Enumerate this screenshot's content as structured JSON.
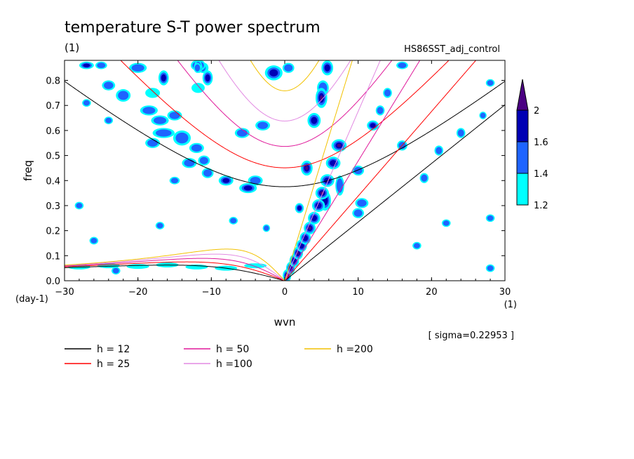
{
  "title": "temperature S-T power spectrum",
  "title_unit": "(1)",
  "run_label": "HS86SST_adj_control",
  "sigma_label": "[ sigma=0.22953 ]",
  "chart_data": {
    "type": "heatmap",
    "title": "temperature S-T power spectrum",
    "xlabel": "wvn",
    "x_unit": "(1)",
    "ylabel": "freq",
    "y_unit": "(day-1)",
    "xlim": [
      -30,
      30
    ],
    "ylim": [
      0,
      0.88
    ],
    "xticks": [
      -30,
      -20,
      -10,
      0,
      10,
      20,
      30
    ],
    "yticks": [
      0.0,
      0.1,
      0.2,
      0.3,
      0.4,
      0.5,
      0.6,
      0.7,
      0.8
    ],
    "contour_levels": [
      1.2,
      1.4,
      1.6,
      2
    ],
    "colorbar_colors": [
      "#00ffff",
      "#1e64ff",
      "#0000b4",
      "#4b0082"
    ],
    "colorbar_tick_labels": [
      "1.2",
      "1.4",
      "1.6",
      "2"
    ],
    "dispersion_curves": [
      {
        "name": "h = 12",
        "h": 12,
        "color": "#000000"
      },
      {
        "name": "h = 25",
        "h": 25,
        "color": "#ff0000"
      },
      {
        "name": "h = 50",
        "h": 50,
        "color": "#e0199a"
      },
      {
        "name": "h =100",
        "h": 100,
        "color": "#e28ae2"
      },
      {
        "name": "h =200",
        "h": 200,
        "color": "#f2c100"
      }
    ],
    "blobs": [
      {
        "x": -27,
        "y": 0.86,
        "w": 1.0,
        "h": 0.015,
        "level": 2
      },
      {
        "x": -25,
        "y": 0.86,
        "w": 0.8,
        "h": 0.015,
        "level": 1
      },
      {
        "x": -20,
        "y": 0.85,
        "w": 1.2,
        "h": 0.02,
        "level": 1
      },
      {
        "x": -24,
        "y": 0.78,
        "w": 0.9,
        "h": 0.02,
        "level": 1
      },
      {
        "x": -22,
        "y": 0.74,
        "w": 1.0,
        "h": 0.025,
        "level": 1
      },
      {
        "x": -18,
        "y": 0.75,
        "w": 1.0,
        "h": 0.02,
        "level": 0
      },
      {
        "x": -16.5,
        "y": 0.81,
        "w": 0.7,
        "h": 0.03,
        "level": 2
      },
      {
        "x": -12,
        "y": 0.86,
        "w": 0.8,
        "h": 0.02,
        "level": 1
      },
      {
        "x": -11,
        "y": 0.85,
        "w": 0.6,
        "h": 0.02,
        "level": 1
      },
      {
        "x": -11,
        "y": 0.85,
        "w": 0.6,
        "h": 0.02,
        "level": 1
      },
      {
        "x": -11.1,
        "y": 0.85,
        "w": 0.7,
        "h": 0.02,
        "level": 1
      },
      {
        "x": -11.2,
        "y": 0.85,
        "w": 0.6,
        "h": 0.02,
        "level": 1
      },
      {
        "x": -11.5,
        "y": 0.86,
        "w": 0.7,
        "h": 0.02,
        "level": 1
      },
      {
        "x": -11.7,
        "y": 0.85,
        "w": 0.5,
        "h": 0.02,
        "level": 1
      },
      {
        "x": -11.8,
        "y": 0.86,
        "w": 0.5,
        "h": 0.02,
        "level": 1
      },
      {
        "x": -11.9,
        "y": 0.85,
        "w": 0.5,
        "h": 0.02,
        "level": 1
      },
      {
        "x": -10.5,
        "y": 0.81,
        "w": 0.7,
        "h": 0.03,
        "level": 2
      },
      {
        "x": -11.8,
        "y": 0.77,
        "w": 0.9,
        "h": 0.02,
        "level": 0
      },
      {
        "x": -18.5,
        "y": 0.68,
        "w": 1.2,
        "h": 0.02,
        "level": 1
      },
      {
        "x": -17,
        "y": 0.64,
        "w": 1.2,
        "h": 0.02,
        "level": 1
      },
      {
        "x": -15,
        "y": 0.66,
        "w": 1.0,
        "h": 0.02,
        "level": 1
      },
      {
        "x": -16.5,
        "y": 0.59,
        "w": 1.5,
        "h": 0.02,
        "level": 1
      },
      {
        "x": -18,
        "y": 0.55,
        "w": 1.0,
        "h": 0.02,
        "level": 1
      },
      {
        "x": -14,
        "y": 0.57,
        "w": 1.2,
        "h": 0.03,
        "level": 1
      },
      {
        "x": -12,
        "y": 0.53,
        "w": 1.0,
        "h": 0.02,
        "level": 1
      },
      {
        "x": -13,
        "y": 0.47,
        "w": 1.0,
        "h": 0.02,
        "level": 1
      },
      {
        "x": -11,
        "y": 0.48,
        "w": 0.8,
        "h": 0.02,
        "level": 1
      },
      {
        "x": -10.5,
        "y": 0.43,
        "w": 0.8,
        "h": 0.02,
        "level": 1
      },
      {
        "x": -8,
        "y": 0.4,
        "w": 1.0,
        "h": 0.02,
        "level": 2
      },
      {
        "x": -5,
        "y": 0.37,
        "w": 1.2,
        "h": 0.02,
        "level": 2
      },
      {
        "x": -4,
        "y": 0.4,
        "w": 1.0,
        "h": 0.02,
        "level": 1
      },
      {
        "x": -5.8,
        "y": 0.59,
        "w": 1.0,
        "h": 0.02,
        "level": 1
      },
      {
        "x": -3,
        "y": 0.62,
        "w": 1.0,
        "h": 0.02,
        "level": 1
      },
      {
        "x": -1.5,
        "y": 0.83,
        "w": 1.2,
        "h": 0.03,
        "level": 2
      },
      {
        "x": 0.5,
        "y": 0.85,
        "w": 0.8,
        "h": 0.02,
        "level": 1
      },
      {
        "x": 5.8,
        "y": 0.85,
        "w": 0.8,
        "h": 0.03,
        "level": 2
      },
      {
        "x": 5.2,
        "y": 0.77,
        "w": 0.8,
        "h": 0.03,
        "level": 1
      },
      {
        "x": 5.0,
        "y": 0.73,
        "w": 0.8,
        "h": 0.04,
        "level": 3
      },
      {
        "x": 4.0,
        "y": 0.64,
        "w": 0.9,
        "h": 0.03,
        "level": 2
      },
      {
        "x": 3.0,
        "y": 0.45,
        "w": 0.8,
        "h": 0.03,
        "level": 3
      },
      {
        "x": 2.0,
        "y": 0.29,
        "w": 0.6,
        "h": 0.02,
        "level": 2
      },
      {
        "x": 5.5,
        "y": 0.32,
        "w": 0.8,
        "h": 0.04,
        "level": 2
      },
      {
        "x": 7.5,
        "y": 0.38,
        "w": 0.6,
        "h": 0.04,
        "level": 1
      },
      {
        "x": 10,
        "y": 0.44,
        "w": 0.8,
        "h": 0.02,
        "level": 1
      },
      {
        "x": 12,
        "y": 0.62,
        "w": 0.8,
        "h": 0.02,
        "level": 2
      },
      {
        "x": 13,
        "y": 0.68,
        "w": 0.6,
        "h": 0.02,
        "level": 1
      },
      {
        "x": 14,
        "y": 0.75,
        "w": 0.6,
        "h": 0.02,
        "level": 1
      },
      {
        "x": 16,
        "y": 0.86,
        "w": 0.8,
        "h": 0.015,
        "level": 1
      },
      {
        "x": 16,
        "y": 0.54,
        "w": 0.7,
        "h": 0.02,
        "level": 1
      },
      {
        "x": 10.5,
        "y": 0.31,
        "w": 0.9,
        "h": 0.02,
        "level": 1
      },
      {
        "x": 10,
        "y": 0.27,
        "w": 0.8,
        "h": 0.02,
        "level": 1
      },
      {
        "x": 19,
        "y": 0.41,
        "w": 0.6,
        "h": 0.02,
        "level": 1
      },
      {
        "x": 21,
        "y": 0.52,
        "w": 0.6,
        "h": 0.02,
        "level": 1
      },
      {
        "x": 24,
        "y": 0.59,
        "w": 0.6,
        "h": 0.02,
        "level": 1
      },
      {
        "x": 28,
        "y": 0.79,
        "w": 0.6,
        "h": 0.015,
        "level": 1
      },
      {
        "x": 27,
        "y": 0.66,
        "w": 0.5,
        "h": 0.015,
        "level": 1
      },
      {
        "x": -24,
        "y": 0.64,
        "w": 0.6,
        "h": 0.015,
        "level": 1
      },
      {
        "x": -27,
        "y": 0.71,
        "w": 0.6,
        "h": 0.015,
        "level": 1
      },
      {
        "x": -28,
        "y": 0.3,
        "w": 0.6,
        "h": 0.015,
        "level": 1
      },
      {
        "x": -26,
        "y": 0.16,
        "w": 0.6,
        "h": 0.015,
        "level": 1
      },
      {
        "x": -23,
        "y": 0.04,
        "w": 0.6,
        "h": 0.015,
        "level": 1
      },
      {
        "x": -15,
        "y": 0.4,
        "w": 0.7,
        "h": 0.015,
        "level": 1
      },
      {
        "x": -17,
        "y": 0.22,
        "w": 0.6,
        "h": 0.015,
        "level": 1
      },
      {
        "x": -7,
        "y": 0.24,
        "w": 0.6,
        "h": 0.015,
        "level": 1
      },
      {
        "x": -2.5,
        "y": 0.21,
        "w": 0.5,
        "h": 0.015,
        "level": 1
      },
      {
        "x": 22,
        "y": 0.23,
        "w": 0.6,
        "h": 0.015,
        "level": 1
      },
      {
        "x": 28,
        "y": 0.25,
        "w": 0.6,
        "h": 0.015,
        "level": 1
      },
      {
        "x": 18,
        "y": 0.14,
        "w": 0.6,
        "h": 0.015,
        "level": 1
      },
      {
        "x": 28,
        "y": 0.05,
        "w": 0.6,
        "h": 0.015,
        "level": 1
      }
    ],
    "ridge": [
      {
        "x": 0.3,
        "y": 0.02
      },
      {
        "x": 0.8,
        "y": 0.05
      },
      {
        "x": 1.3,
        "y": 0.08
      },
      {
        "x": 1.8,
        "y": 0.11
      },
      {
        "x": 2.3,
        "y": 0.14
      },
      {
        "x": 2.8,
        "y": 0.17
      },
      {
        "x": 3.4,
        "y": 0.21
      },
      {
        "x": 4.0,
        "y": 0.25
      },
      {
        "x": 4.6,
        "y": 0.3
      },
      {
        "x": 5.1,
        "y": 0.35
      },
      {
        "x": 5.8,
        "y": 0.4
      },
      {
        "x": 6.6,
        "y": 0.47
      },
      {
        "x": 7.4,
        "y": 0.54
      }
    ],
    "low_band": [
      {
        "x": -28,
        "y": 0.055
      },
      {
        "x": -24,
        "y": 0.06
      },
      {
        "x": -20,
        "y": 0.057
      },
      {
        "x": -16,
        "y": 0.063
      },
      {
        "x": -12,
        "y": 0.055
      },
      {
        "x": -8,
        "y": 0.05
      },
      {
        "x": -4,
        "y": 0.06
      }
    ],
    "legend": [
      {
        "label": "h = 12",
        "color": "#000000"
      },
      {
        "label": "h = 25",
        "color": "#ff0000"
      },
      {
        "label": "h = 50",
        "color": "#e0199a"
      },
      {
        "label": "h =100",
        "color": "#e28ae2"
      },
      {
        "label": "h =200",
        "color": "#f2c100"
      }
    ]
  }
}
